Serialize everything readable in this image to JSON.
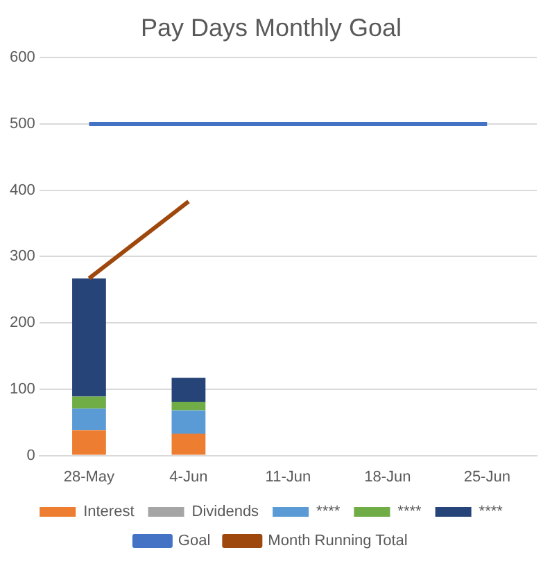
{
  "chart_data": {
    "type": "bar",
    "title": "Pay Days Monthly Goal",
    "stacked": true,
    "grid": "y",
    "legend": "bottom",
    "categories": [
      "28-May",
      "4-Jun",
      "11-Jun",
      "18-Jun",
      "25-Jun"
    ],
    "ylim": [
      0,
      600
    ],
    "yticks": [
      0,
      100,
      200,
      300,
      400,
      500,
      600
    ],
    "series": [
      {
        "name": "Interest",
        "color": "#ed7d31",
        "values": [
          38,
          33,
          null,
          null,
          null
        ]
      },
      {
        "name": "Dividends",
        "color": "#a5a5a5",
        "values": [
          null,
          null,
          null,
          null,
          null
        ]
      },
      {
        "name": "****",
        "color": "#5b9bd5",
        "values": [
          33,
          35,
          null,
          null,
          null
        ]
      },
      {
        "name": "****",
        "color": "#70ad47",
        "values": [
          18,
          13,
          null,
          null,
          null
        ]
      },
      {
        "name": "****",
        "color": "#264478",
        "values": [
          178,
          36,
          null,
          null,
          null
        ]
      },
      {
        "name": "Goal",
        "type": "line",
        "color": "#4472c4",
        "values": [
          500,
          500,
          500,
          500,
          500
        ]
      },
      {
        "name": "Month Running Total",
        "type": "line",
        "color": "#9e480e",
        "values": [
          267,
          383,
          null,
          null,
          null
        ]
      }
    ]
  }
}
